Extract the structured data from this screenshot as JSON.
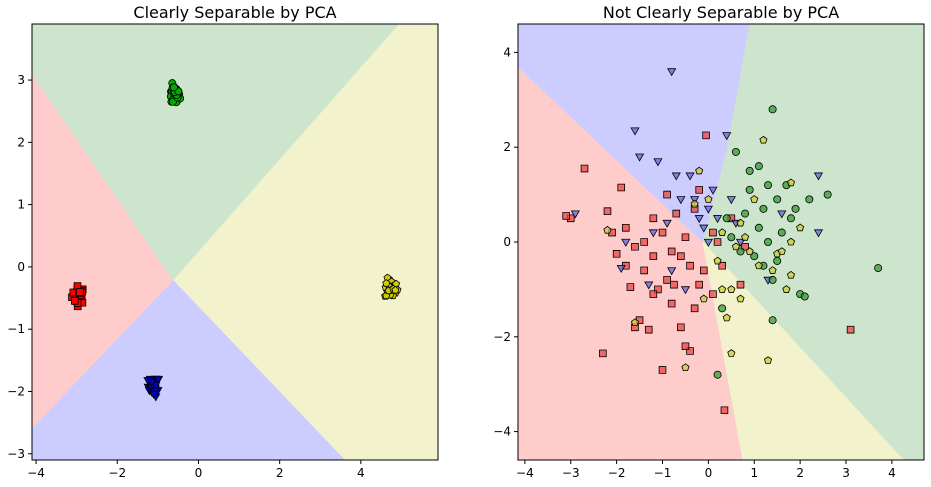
{
  "chart_data": [
    {
      "type": "scatter",
      "title": "Clearly Separable by PCA",
      "xlim": [
        -4.1,
        5.9
      ],
      "ylim": [
        -3.1,
        3.9
      ],
      "xticks": [
        -4,
        -2,
        0,
        2,
        4
      ],
      "yticks": [
        -3,
        -2,
        -1,
        0,
        1,
        2,
        3
      ],
      "region_colors": {
        "red": "#ffcccc",
        "blue": "#ccccff",
        "green": "#cce5cc",
        "yellow": "#f2f2cc"
      },
      "regions": {
        "red": [
          [
            -4.1,
            3.1
          ],
          [
            -0.62,
            -0.22
          ],
          [
            -4.1,
            -2.6
          ]
        ],
        "green": [
          [
            -4.1,
            3.9
          ],
          [
            4.95,
            3.9
          ],
          [
            -0.62,
            -0.22
          ],
          [
            -4.1,
            3.1
          ]
        ],
        "yellow": [
          [
            4.95,
            3.9
          ],
          [
            5.9,
            3.9
          ],
          [
            5.9,
            -3.1
          ],
          [
            3.6,
            -3.1
          ],
          [
            -0.62,
            -0.22
          ]
        ],
        "blue": [
          [
            -0.62,
            -0.22
          ],
          [
            3.6,
            -3.1
          ],
          [
            -4.1,
            -3.1
          ],
          [
            -4.1,
            -2.6
          ]
        ]
      },
      "series": [
        {
          "marker": "square",
          "color": "#ff0000",
          "center": [
            -2.95,
            -0.45
          ],
          "spread": [
            0.08,
            0.07
          ],
          "count": 30
        },
        {
          "marker": "triangle-down",
          "color": "#0000cc",
          "center": [
            -1.1,
            -1.92
          ],
          "spread": [
            0.07,
            0.08
          ],
          "count": 30
        },
        {
          "marker": "circle",
          "color": "#00aa00",
          "center": [
            -0.6,
            2.75
          ],
          "spread": [
            0.07,
            0.08
          ],
          "count": 30
        },
        {
          "marker": "pentagon",
          "color": "#cccc00",
          "center": [
            4.75,
            -0.35
          ],
          "spread": [
            0.08,
            0.08
          ],
          "count": 30
        }
      ]
    },
    {
      "type": "scatter",
      "title": "Not Clearly Separable by PCA",
      "xlim": [
        -4.15,
        4.7
      ],
      "ylim": [
        -4.6,
        4.6
      ],
      "xticks": [
        -4,
        -3,
        -2,
        -1,
        0,
        1,
        2,
        3,
        4
      ],
      "yticks": [
        -4,
        -2,
        0,
        2,
        4
      ],
      "region_colors": {
        "red": "#ffcccc",
        "blue": "#ccccff",
        "green": "#cce5cc",
        "yellow": "#f2f2cc"
      },
      "regions": {
        "red": [
          [
            -4.15,
            3.7
          ],
          [
            -0.12,
            0.0
          ],
          [
            0.75,
            -4.6
          ],
          [
            -4.15,
            -4.6
          ]
        ],
        "blue": [
          [
            -4.15,
            4.6
          ],
          [
            0.9,
            4.6
          ],
          [
            0.4,
            1.9
          ],
          [
            -0.12,
            0.0
          ],
          [
            -4.15,
            3.7
          ]
        ],
        "green": [
          [
            0.9,
            4.6
          ],
          [
            4.7,
            4.6
          ],
          [
            4.7,
            -4.6
          ],
          [
            4.25,
            -4.6
          ],
          [
            -0.12,
            0.0
          ],
          [
            0.4,
            1.9
          ]
        ],
        "yellow": [
          [
            -0.12,
            0.0
          ],
          [
            4.25,
            -4.6
          ],
          [
            0.75,
            -4.6
          ]
        ]
      },
      "series": [
        {
          "marker": "square",
          "color": "#ee4444",
          "points": [
            [
              -2.7,
              1.55
            ],
            [
              -3.0,
              0.5
            ],
            [
              -2.3,
              -2.35
            ],
            [
              -1.9,
              1.15
            ],
            [
              -1.8,
              0.3
            ],
            [
              -1.6,
              -0.1
            ],
            [
              -1.4,
              0.0
            ],
            [
              -1.4,
              -0.6
            ],
            [
              -1.2,
              0.5
            ],
            [
              -1.2,
              -0.3
            ],
            [
              -1.0,
              0.2
            ],
            [
              -0.9,
              -0.8
            ],
            [
              -0.8,
              -1.3
            ],
            [
              -0.75,
              -0.9
            ],
            [
              -0.6,
              -0.3
            ],
            [
              -0.5,
              0.1
            ],
            [
              -0.4,
              -0.5
            ],
            [
              -0.3,
              0.7
            ],
            [
              -0.2,
              1.1
            ],
            [
              -0.1,
              -0.6
            ],
            [
              -0.05,
              2.25
            ],
            [
              0.1,
              0.2
            ],
            [
              0.2,
              0.0
            ],
            [
              0.3,
              -0.5
            ],
            [
              0.35,
              -3.55
            ],
            [
              0.5,
              0.5
            ],
            [
              0.7,
              -0.9
            ],
            [
              0.8,
              -0.1
            ],
            [
              -1.3,
              -1.85
            ],
            [
              -1.0,
              -2.7
            ],
            [
              -0.6,
              -1.8
            ],
            [
              -0.2,
              -0.9
            ],
            [
              -2.0,
              -0.25
            ],
            [
              -1.7,
              -0.95
            ],
            [
              -1.5,
              -1.65
            ],
            [
              -1.1,
              -1.0
            ],
            [
              -0.4,
              -2.3
            ],
            [
              -1.2,
              -1.1
            ],
            [
              -0.8,
              -0.2
            ],
            [
              -0.7,
              0.6
            ],
            [
              -0.3,
              -1.4
            ],
            [
              0.1,
              -1.1
            ],
            [
              -2.1,
              0.2
            ],
            [
              -2.2,
              0.65
            ],
            [
              -1.8,
              -0.5
            ],
            [
              -0.9,
              1.0
            ],
            [
              -0.5,
              -2.2
            ],
            [
              3.1,
              -1.85
            ],
            [
              -3.1,
              0.55
            ],
            [
              -1.6,
              -1.8
            ]
          ]
        },
        {
          "marker": "triangle-down",
          "color": "#6666dd",
          "points": [
            [
              -0.8,
              3.6
            ],
            [
              -1.6,
              2.35
            ],
            [
              -1.5,
              1.8
            ],
            [
              -1.1,
              1.7
            ],
            [
              -1.2,
              0.2
            ],
            [
              -0.9,
              0.4
            ],
            [
              -0.7,
              1.4
            ],
            [
              -0.6,
              0.9
            ],
            [
              -0.4,
              1.4
            ],
            [
              -0.3,
              0.9
            ],
            [
              -0.2,
              0.5
            ],
            [
              -0.1,
              0.3
            ],
            [
              0.0,
              0.7
            ],
            [
              0.1,
              1.1
            ],
            [
              0.2,
              0.5
            ],
            [
              0.4,
              2.25
            ],
            [
              0.5,
              0.9
            ],
            [
              0.6,
              0.4
            ],
            [
              0.7,
              0.0
            ],
            [
              -1.9,
              -0.55
            ],
            [
              -1.3,
              -0.9
            ],
            [
              -0.5,
              -1.0
            ],
            [
              -2.9,
              0.6
            ],
            [
              2.4,
              1.4
            ],
            [
              2.4,
              0.2
            ],
            [
              1.3,
              -0.8
            ],
            [
              1.6,
              0.6
            ],
            [
              -1.8,
              0.0
            ],
            [
              -0.8,
              -0.6
            ],
            [
              0.0,
              0.0
            ]
          ]
        },
        {
          "marker": "circle",
          "color": "#339933",
          "points": [
            [
              1.4,
              2.8
            ],
            [
              0.6,
              1.9
            ],
            [
              0.9,
              1.5
            ],
            [
              1.1,
              1.6
            ],
            [
              1.3,
              1.2
            ],
            [
              1.2,
              0.7
            ],
            [
              1.5,
              0.9
            ],
            [
              1.7,
              1.2
            ],
            [
              1.8,
              0.5
            ],
            [
              1.9,
              0.7
            ],
            [
              2.0,
              -1.1
            ],
            [
              2.1,
              -1.15
            ],
            [
              2.2,
              0.9
            ],
            [
              2.6,
              1.0
            ],
            [
              1.0,
              -0.3
            ],
            [
              1.2,
              -0.5
            ],
            [
              1.3,
              0.0
            ],
            [
              1.4,
              -0.8
            ],
            [
              1.5,
              -0.4
            ],
            [
              1.6,
              0.2
            ],
            [
              0.4,
              0.5
            ],
            [
              0.5,
              0.1
            ],
            [
              0.7,
              -0.2
            ],
            [
              0.8,
              0.6
            ],
            [
              0.9,
              1.1
            ],
            [
              0.3,
              -1.4
            ],
            [
              0.2,
              -2.8
            ],
            [
              1.4,
              -1.65
            ],
            [
              3.7,
              -0.55
            ],
            [
              1.1,
              0.3
            ]
          ]
        },
        {
          "marker": "pentagon",
          "color": "#cccc33",
          "points": [
            [
              1.2,
              2.15
            ],
            [
              1.8,
              1.25
            ],
            [
              1.5,
              -0.25
            ],
            [
              1.6,
              -0.2
            ],
            [
              1.8,
              0.0
            ],
            [
              1.8,
              -0.7
            ],
            [
              2.0,
              0.3
            ],
            [
              1.4,
              -0.6
            ],
            [
              1.1,
              -0.5
            ],
            [
              0.9,
              -0.2
            ],
            [
              0.8,
              0.1
            ],
            [
              0.7,
              0.4
            ],
            [
              0.6,
              -0.1
            ],
            [
              0.5,
              -1.0
            ],
            [
              0.5,
              -2.35
            ],
            [
              1.3,
              -2.5
            ],
            [
              0.4,
              -1.6
            ],
            [
              0.3,
              -1.0
            ],
            [
              0.2,
              -0.4
            ],
            [
              -0.2,
              1.5
            ],
            [
              -0.3,
              0.8
            ],
            [
              -1.6,
              -1.7
            ],
            [
              -2.2,
              0.25
            ],
            [
              -0.5,
              -2.65
            ],
            [
              1.7,
              -1.0
            ],
            [
              1.0,
              0.9
            ],
            [
              0.3,
              0.2
            ],
            [
              0.0,
              0.9
            ],
            [
              0.7,
              -1.2
            ],
            [
              -0.1,
              -1.2
            ]
          ]
        }
      ]
    }
  ]
}
